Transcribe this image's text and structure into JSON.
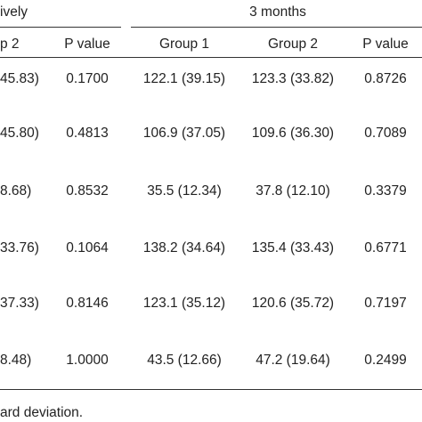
{
  "header": {
    "group_left_fragment": "ively",
    "group_right": "3 months"
  },
  "columns": [
    "p 2",
    "P value",
    "Group 1",
    "Group 2",
    "P value"
  ],
  "rows": [
    [
      "45.83)",
      "0.1700",
      "122.1 (39.15)",
      "123.3 (33.82)",
      "0.8726"
    ],
    [
      "45.80)",
      "0.4813",
      "106.9 (37.05)",
      "109.6 (36.30)",
      "0.7089"
    ],
    [
      "8.68)",
      "0.8532",
      "35.5 (12.34)",
      "37.8 (12.10)",
      "0.3379"
    ],
    [
      "33.76)",
      "0.1064",
      "138.2 (34.64)",
      "135.4 (33.43)",
      "0.6771"
    ],
    [
      "37.33)",
      "0.8146",
      "123.1 (35.12)",
      "120.6 (35.72)",
      "0.7197"
    ],
    [
      "8.48)",
      "1.0000",
      "43.5 (12.66)",
      "47.2 (19.64)",
      "0.2499"
    ]
  ],
  "footnote": "ard deviation."
}
